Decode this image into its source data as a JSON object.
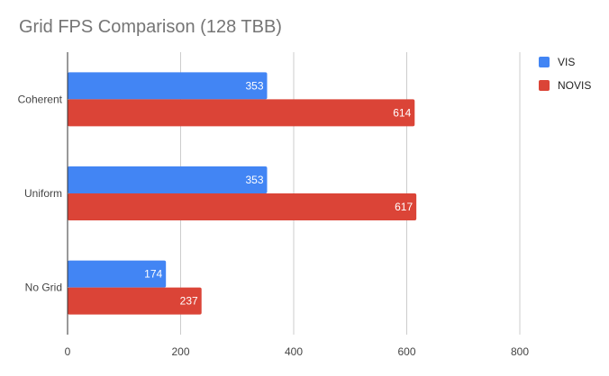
{
  "chart_data": {
    "type": "bar",
    "orientation": "horizontal",
    "title": "Grid FPS Comparison (128 TBB)",
    "categories": [
      "Coherent",
      "Uniform",
      "No Grid"
    ],
    "series": [
      {
        "name": "VIS",
        "values": [
          353,
          353,
          174
        ],
        "color": "#4285f4"
      },
      {
        "name": "NOVIS",
        "values": [
          614,
          617,
          237
        ],
        "color": "#db4437"
      }
    ],
    "xlim": [
      0,
      800
    ],
    "xticks": [
      0,
      200,
      400,
      600,
      800
    ],
    "xlabel": "",
    "ylabel": "",
    "grid": true,
    "legend_position": "right",
    "data_labels": true
  }
}
